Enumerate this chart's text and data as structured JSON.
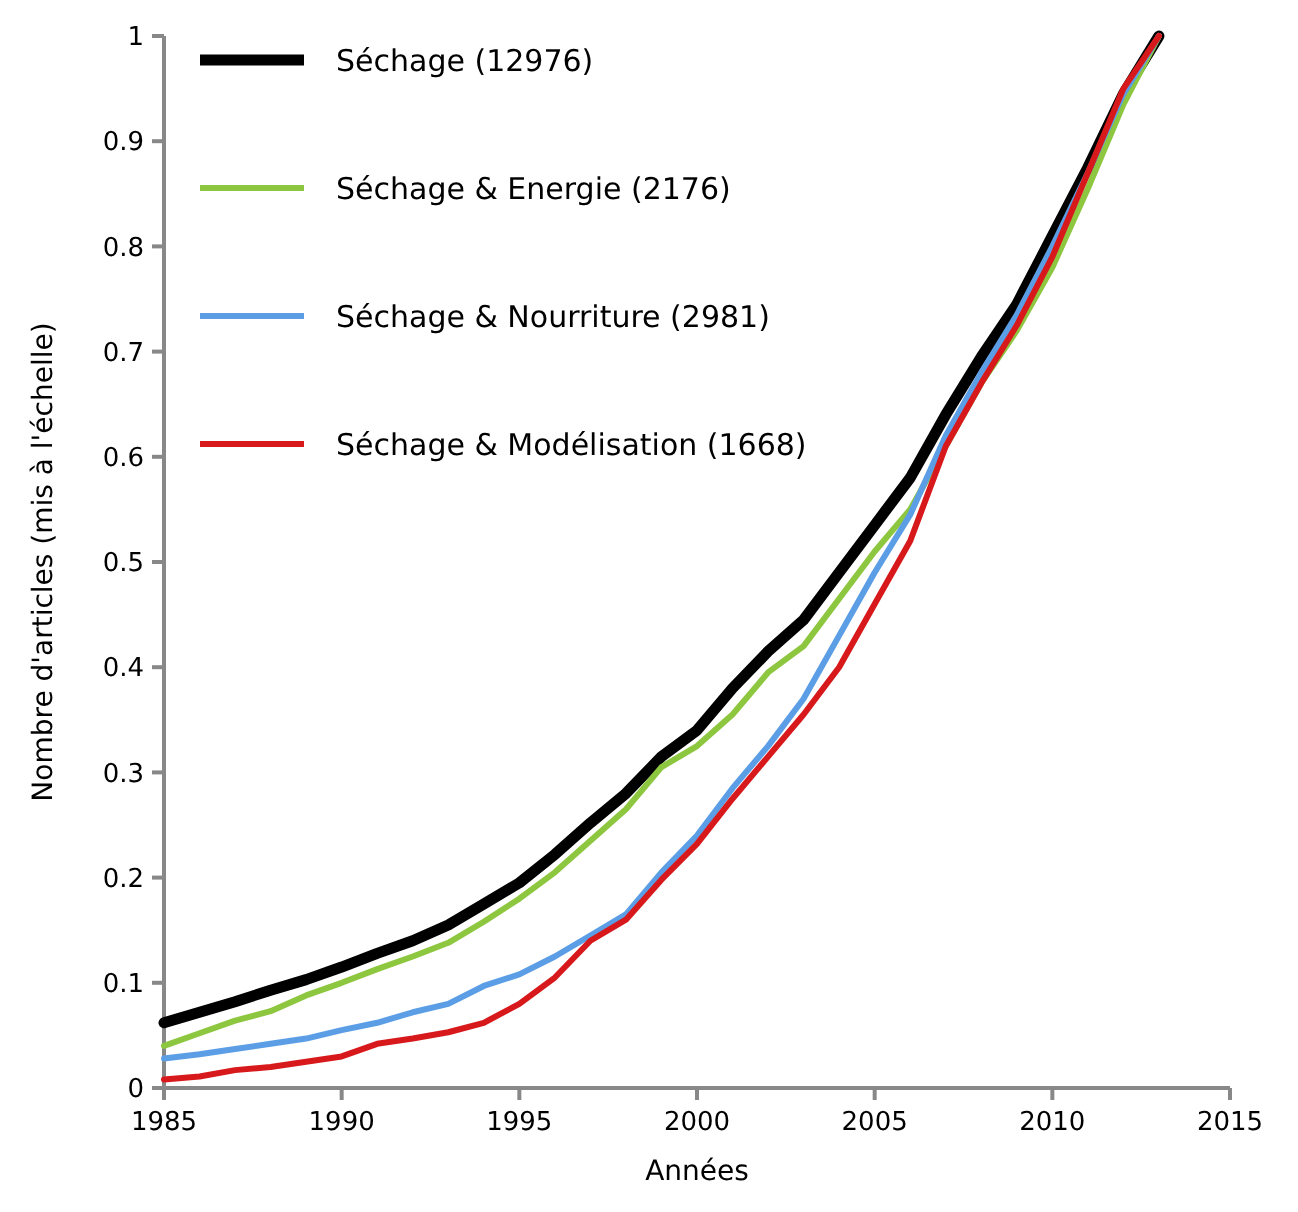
{
  "chart_data": {
    "type": "line",
    "xlabel": "Années",
    "ylabel": "Nombre d'articles (mis à l'échelle)",
    "x": [
      1985,
      1986,
      1987,
      1988,
      1989,
      1990,
      1991,
      1992,
      1993,
      1994,
      1995,
      1996,
      1997,
      1998,
      1999,
      2000,
      2001,
      2002,
      2003,
      2004,
      2005,
      2006,
      2007,
      2008,
      2009,
      2010,
      2011,
      2012,
      2013
    ],
    "xlim": [
      1985,
      2015
    ],
    "xticks": [
      1985,
      1990,
      1995,
      2000,
      2005,
      2010,
      2015
    ],
    "ylim": [
      0,
      1
    ],
    "yticks": [
      0,
      0.1,
      0.2,
      0.3,
      0.4,
      0.5,
      0.6,
      0.7,
      0.8,
      0.9,
      1
    ],
    "grid": false,
    "legend": "top left",
    "marker": "none",
    "line_style": "solid",
    "series": [
      {
        "name": "Séchage (12976)",
        "color": "#000000",
        "values": [
          0.062,
          0.072,
          0.082,
          0.093,
          0.103,
          0.115,
          0.128,
          0.14,
          0.155,
          0.175,
          0.195,
          0.222,
          0.252,
          0.28,
          0.315,
          0.34,
          0.38,
          0.415,
          0.445,
          0.49,
          0.535,
          0.58,
          0.64,
          0.695,
          0.745,
          0.81,
          0.875,
          0.945,
          1.0
        ]
      },
      {
        "name": "Séchage & Energie (2176)",
        "color": "#8dc63f",
        "values": [
          0.04,
          0.052,
          0.064,
          0.073,
          0.088,
          0.1,
          0.113,
          0.125,
          0.138,
          0.158,
          0.18,
          0.205,
          0.235,
          0.265,
          0.305,
          0.325,
          0.355,
          0.395,
          0.42,
          0.465,
          0.51,
          0.55,
          0.61,
          0.67,
          0.72,
          0.78,
          0.855,
          0.935,
          1.0
        ]
      },
      {
        "name": "Séchage & Nourriture (2981)",
        "color": "#5b9ee6",
        "values": [
          0.028,
          0.032,
          0.037,
          0.042,
          0.047,
          0.055,
          0.062,
          0.072,
          0.08,
          0.097,
          0.108,
          0.125,
          0.145,
          0.165,
          0.205,
          0.24,
          0.285,
          0.325,
          0.37,
          0.43,
          0.49,
          0.545,
          0.62,
          0.68,
          0.735,
          0.8,
          0.87,
          0.945,
          1.0
        ]
      },
      {
        "name": "Séchage & Modélisation (1668)",
        "color": "#d7191c",
        "values": [
          0.008,
          0.011,
          0.017,
          0.02,
          0.025,
          0.03,
          0.042,
          0.047,
          0.053,
          0.062,
          0.08,
          0.105,
          0.14,
          0.16,
          0.198,
          0.232,
          0.275,
          0.315,
          0.355,
          0.4,
          0.46,
          0.52,
          0.61,
          0.67,
          0.725,
          0.79,
          0.87,
          0.95,
          1.0
        ]
      }
    ]
  }
}
